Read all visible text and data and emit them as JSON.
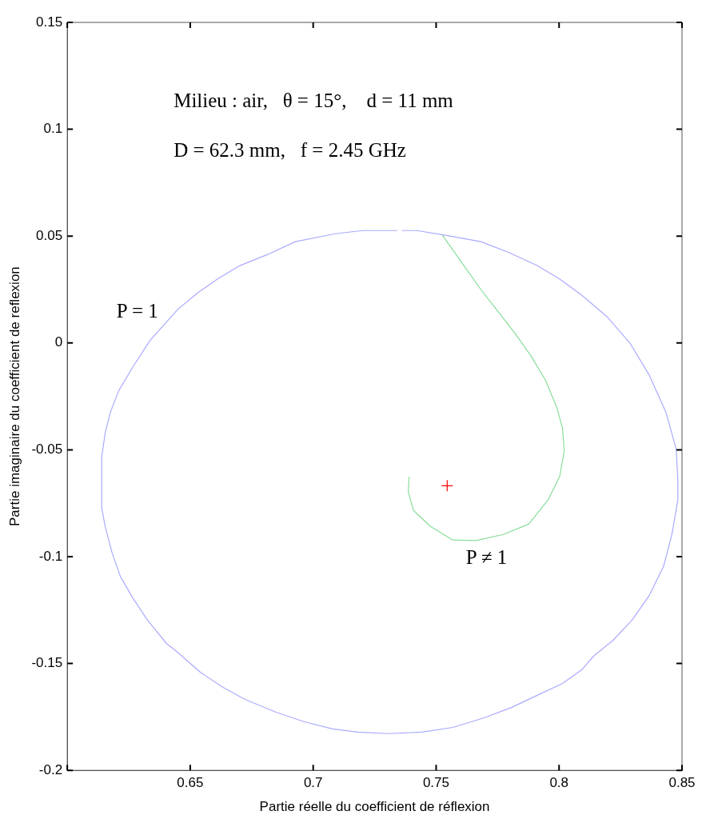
{
  "chart_data": {
    "type": "line",
    "xlabel": "Partie réelle du coefficient de réflexion",
    "ylabel": "Partie imaginaire du coefficient de reflexion",
    "xlim": [
      0.6,
      0.85
    ],
    "xticks": [
      {
        "value": 0.6,
        "label": null
      },
      0.65,
      0.7,
      0.75,
      0.8,
      0.85
    ],
    "ylim": [
      -0.2,
      0.15
    ],
    "yticks": [
      -0.2,
      -0.15,
      -0.1,
      -0.05,
      0,
      0.05,
      0.1,
      0.15
    ],
    "grid": false,
    "legend": false,
    "marker": "none",
    "series": [
      {
        "type": "line",
        "color": "#aaaaff",
        "x": [
          0.7363,
          0.7421,
          0.7524,
          0.7682,
          0.7798,
          0.7911,
          0.8003,
          0.8092,
          0.8195,
          0.8288,
          0.8366,
          0.8435,
          0.8476,
          0.8483,
          0.8483,
          0.8459,
          0.8425,
          0.8366,
          0.8298,
          0.8219,
          0.814,
          0.8092,
          0.8014,
          0.7911,
          0.7808,
          0.7695,
          0.7568,
          0.7442,
          0.7305,
          0.7182,
          0.7079,
          0.6962,
          0.6849,
          0.6723,
          0.6634,
          0.6541,
          0.6438,
          0.6404,
          0.6325,
          0.6267,
          0.6216,
          0.6182,
          0.6154,
          0.614,
          0.614,
          0.6154,
          0.6175,
          0.6209,
          0.6267,
          0.6336,
          0.6394,
          0.6449,
          0.6531,
          0.661,
          0.6702,
          0.6815,
          0.6928,
          0.7089,
          0.7202,
          0.734
        ],
        "values": [
          0.0526,
          0.0526,
          0.0507,
          0.0474,
          0.0422,
          0.0362,
          0.0299,
          0.0224,
          0.0123,
          0,
          -0.0149,
          -0.0325,
          -0.0496,
          -0.0634,
          -0.0735,
          -0.0896,
          -0.1045,
          -0.1183,
          -0.1295,
          -0.1392,
          -0.1466,
          -0.153,
          -0.1593,
          -0.1649,
          -0.1705,
          -0.1754,
          -0.1799,
          -0.1821,
          -0.1828,
          -0.1821,
          -0.1806,
          -0.1772,
          -0.1728,
          -0.1668,
          -0.1612,
          -0.1541,
          -0.1437,
          -0.1407,
          -0.1295,
          -0.1194,
          -0.1093,
          -0.0981,
          -0.0858,
          -0.0772,
          -0.0534,
          -0.0422,
          -0.0325,
          -0.0224,
          -0.0112,
          0.0011,
          0.0086,
          0.0157,
          0.0235,
          0.0299,
          0.0362,
          0.0414,
          0.0474,
          0.0511,
          0.0526,
          0.0526
        ]
      },
      {
        "type": "line",
        "color": "#88dd99",
        "x": [
          0.7524,
          0.7613,
          0.7682,
          0.775,
          0.7818,
          0.7887,
          0.7945,
          0.799,
          0.8014,
          0.8021,
          0.8003,
          0.7955,
          0.7877,
          0.7774,
          0.7661,
          0.7568,
          0.7476,
          0.7408,
          0.7387,
          0.739
        ],
        "values": [
          0.0507,
          0.0362,
          0.025,
          0.0149,
          0.0049,
          -0.0063,
          -0.0175,
          -0.0299,
          -0.0399,
          -0.0504,
          -0.0623,
          -0.0735,
          -0.0847,
          -0.0896,
          -0.0925,
          -0.0922,
          -0.0858,
          -0.0784,
          -0.0698,
          -0.0627
        ]
      },
      {
        "type": "scatter",
        "color": "#ff0000",
        "marker": "cross",
        "x": [
          0.7545
        ],
        "values": [
          -0.0668
        ]
      }
    ],
    "annotations": [
      "Milieu : air,   θ = 15°,    d = 11 mm",
      "D = 62.3 mm,   f = 2.45 GHz",
      "P = 1",
      "P ≠ 1"
    ]
  }
}
